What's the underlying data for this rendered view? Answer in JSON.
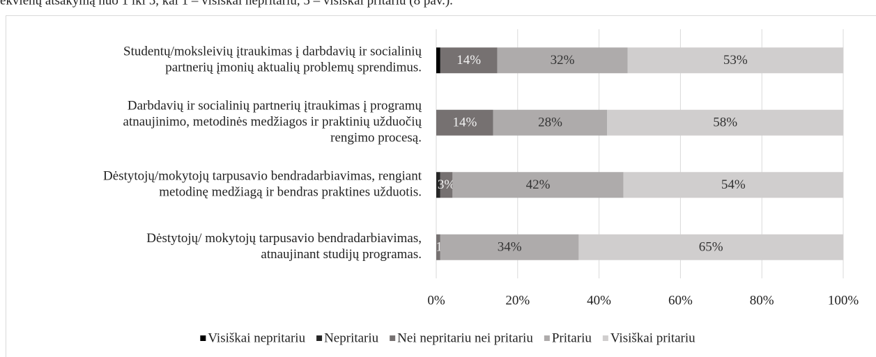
{
  "caption": "ekvienų atsakymą nuo 1 iki 5, kai 1 – visiškai nepritariu, 5 – visiškai pritariu (8 pav.).",
  "chart_data": {
    "type": "bar",
    "orientation": "horizontal",
    "stacked": true,
    "categories": [
      [
        "Studentų/moksleivių įtraukimas į darbdavių ir socialinių",
        "partnerių įmonių aktualių problemų sprendimus."
      ],
      [
        "Darbdavių ir socialinių partnerių įtraukimas į programų",
        "atnaujinimo, metodinės medžiagos ir praktinių užduočių",
        "rengimo procesą."
      ],
      [
        "Dėstytojų/mokytojų tarpusavio bendradarbiavimas, rengiant",
        "metodinę medžiagą ir bendras praktines užduotis."
      ],
      [
        "Dėstytojų/ mokytojų tarpusavio bendradarbiavimas,",
        "atnaujinant studijų programas."
      ]
    ],
    "xlim": [
      0,
      100
    ],
    "xticks": [
      {
        "value": 0,
        "label": "0%"
      },
      {
        "value": 20,
        "label": "20%"
      },
      {
        "value": 40,
        "label": "40%"
      },
      {
        "value": 60,
        "label": "60%"
      },
      {
        "value": 80,
        "label": "80%"
      },
      {
        "value": 100,
        "label": "100%"
      }
    ],
    "grid": true,
    "legend": "bottom",
    "series": [
      {
        "name": "Visiškai nepritariu",
        "color": "#000000",
        "values": [
          1,
          0,
          0,
          0
        ]
      },
      {
        "name": "Nepritariu",
        "color": "#262626",
        "values": [
          0,
          0,
          1,
          0
        ]
      },
      {
        "name": "Nei nepritariu nei pritariu",
        "color": "#767171",
        "values": [
          14,
          14,
          3,
          1
        ],
        "value_labels": [
          "14%",
          "14%",
          "3%",
          "1%"
        ]
      },
      {
        "name": "Pritariu",
        "color": "#aeabab",
        "values": [
          32,
          28,
          42,
          34
        ],
        "value_labels": [
          "32%",
          "28%",
          "42%",
          "34%"
        ]
      },
      {
        "name": "Visiškai pritariu",
        "color": "#d0cece",
        "values": [
          53,
          58,
          54,
          65
        ],
        "value_labels": [
          "53%",
          "58%",
          "54%",
          "65%"
        ]
      }
    ]
  }
}
